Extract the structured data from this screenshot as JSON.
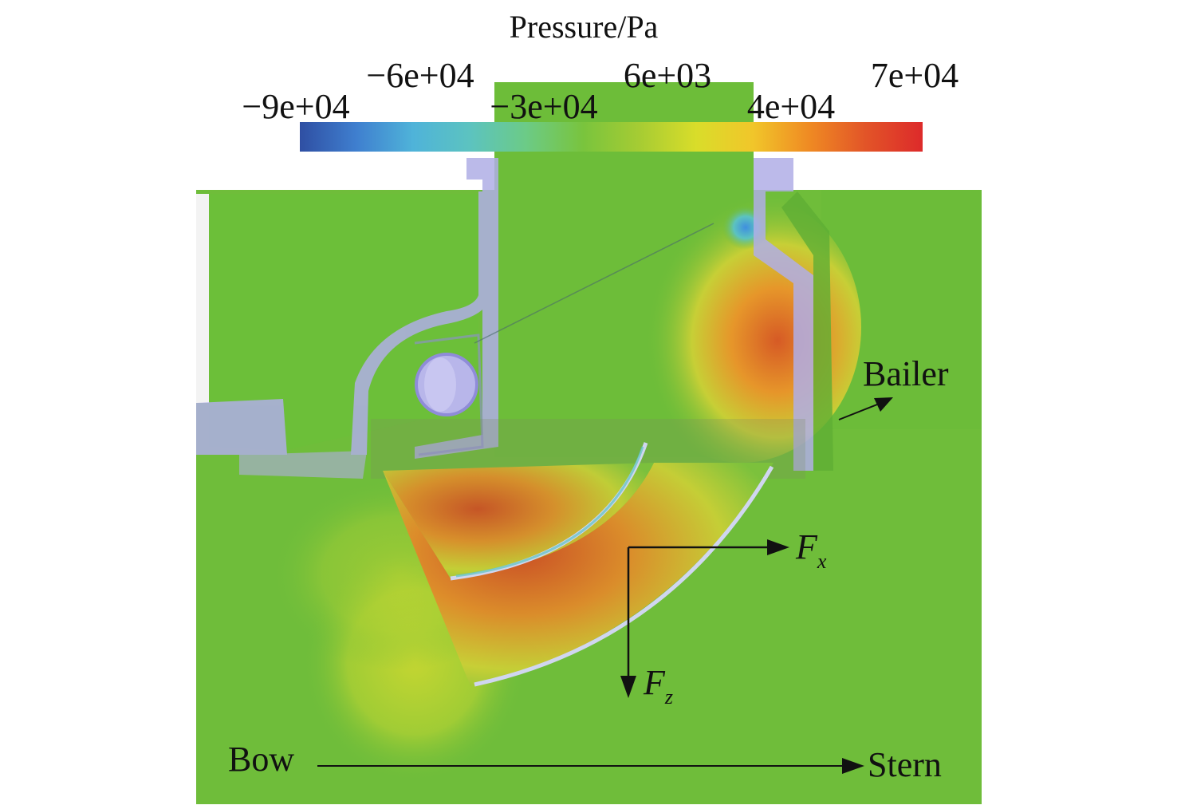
{
  "colorbar": {
    "title": "Pressure/Pa",
    "ticks_upper": [
      "−6e+04",
      "6e+03",
      "7e+04"
    ],
    "ticks_lower": [
      "−9e+04",
      "−3e+04",
      "4e+04"
    ],
    "colors": [
      "#2f4fa3",
      "#3f7fcf",
      "#4fb3d9",
      "#5cc3c0",
      "#6ccb86",
      "#79c43d",
      "#a6cc33",
      "#d9dd2a",
      "#f1c62a",
      "#ef8a23",
      "#e25428",
      "#dd2a2a"
    ]
  },
  "labels": {
    "bailer": "Bailer",
    "bow": "Bow",
    "stern": "Stern",
    "fx": "F",
    "fx_sub": "x",
    "fz": "F",
    "fz_sub": "z"
  },
  "colors": {
    "field_green": "#6fbd3a",
    "wall_lavender": "#b0aee6",
    "high_pressure": "#d94b22",
    "low_pressure": "#3fa0e0"
  }
}
